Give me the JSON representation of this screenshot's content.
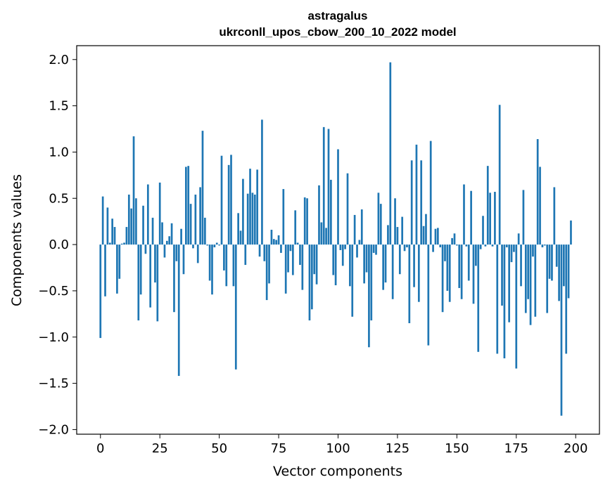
{
  "chart_data": {
    "type": "bar",
    "title": "astragalus",
    "subtitle": "ukrconll_upos_cbow_200_10_2022 model",
    "xlabel": "Vector components",
    "ylabel": "Components values",
    "xlim": [
      -10,
      210
    ],
    "ylim": [
      -2.05,
      2.15
    ],
    "xticks": [
      0,
      25,
      50,
      75,
      100,
      125,
      150,
      175,
      200
    ],
    "yticks": [
      2.0,
      1.5,
      1.0,
      0.5,
      0.0,
      -0.5,
      -1.0,
      -1.5,
      -2.0
    ],
    "xtick_labels": [
      "0",
      "25",
      "50",
      "75",
      "100",
      "125",
      "150",
      "175",
      "200"
    ],
    "ytick_labels": [
      "2.0",
      "1.5",
      "1.0",
      "0.5",
      "0.0",
      "−0.5",
      "−1.0",
      "−1.5",
      "−2.0"
    ],
    "bar_color": "#1f77b4",
    "grid": false,
    "values": [
      -1.01,
      0.52,
      -0.56,
      0.4,
      0.02,
      0.28,
      0.19,
      -0.53,
      -0.37,
      0.01,
      0.02,
      0.19,
      0.54,
      0.39,
      1.17,
      0.5,
      -0.82,
      -0.54,
      0.42,
      -0.1,
      0.65,
      -0.68,
      0.29,
      -0.41,
      -0.83,
      0.67,
      0.24,
      -0.14,
      0.04,
      0.09,
      0.23,
      -0.73,
      -0.18,
      -1.42,
      0.17,
      -0.32,
      0.84,
      0.85,
      0.44,
      -0.04,
      0.54,
      -0.2,
      0.62,
      1.23,
      0.29,
      -0.01,
      -0.39,
      -0.54,
      -0.03,
      0.02,
      -0.01,
      0.96,
      -0.28,
      -0.45,
      0.86,
      0.97,
      -0.45,
      -1.35,
      0.34,
      0.15,
      0.71,
      -0.22,
      0.55,
      0.82,
      0.56,
      0.54,
      0.81,
      -0.13,
      1.35,
      -0.18,
      -0.6,
      -0.42,
      0.16,
      0.06,
      0.05,
      0.1,
      -0.09,
      0.6,
      -0.53,
      -0.3,
      -0.07,
      -0.33,
      0.37,
      0.02,
      -0.22,
      -0.49,
      0.51,
      0.5,
      -0.82,
      -0.7,
      -0.32,
      -0.43,
      0.64,
      0.24,
      1.27,
      0.18,
      1.25,
      0.7,
      -0.33,
      -0.44,
      1.03,
      -0.06,
      -0.23,
      -0.05,
      0.77,
      -0.45,
      -0.78,
      0.32,
      -0.14,
      0.05,
      0.38,
      -0.42,
      -0.3,
      -1.11,
      -0.82,
      -0.09,
      -0.11,
      0.56,
      0.44,
      -0.49,
      -0.41,
      0.21,
      1.97,
      -0.59,
      0.5,
      0.19,
      -0.32,
      0.3,
      -0.07,
      -0.03,
      -0.85,
      0.91,
      -0.46,
      1.08,
      -0.62,
      0.91,
      0.2,
      0.33,
      -1.09,
      1.12,
      -0.08,
      0.17,
      0.18,
      -0.03,
      -0.73,
      -0.18,
      -0.5,
      -0.62,
      0.07,
      0.12,
      -0.01,
      -0.47,
      -0.59,
      0.65,
      -0.02,
      -0.39,
      0.58,
      -0.64,
      -0.23,
      -1.16,
      -0.05,
      0.31,
      -0.02,
      0.85,
      0.56,
      -0.02,
      0.57,
      -1.18,
      1.51,
      -0.66,
      -1.23,
      -0.03,
      -0.84,
      -0.19,
      -0.08,
      -1.34,
      0.12,
      -0.45,
      0.59,
      -0.74,
      -0.59,
      -0.87,
      -0.13,
      -0.78,
      1.14,
      0.84,
      -0.03,
      -0.01,
      -0.74,
      -0.37,
      -0.39,
      0.62,
      -0.24,
      -0.61,
      -1.85,
      -0.45,
      -1.18,
      -0.58,
      0.26
    ]
  }
}
